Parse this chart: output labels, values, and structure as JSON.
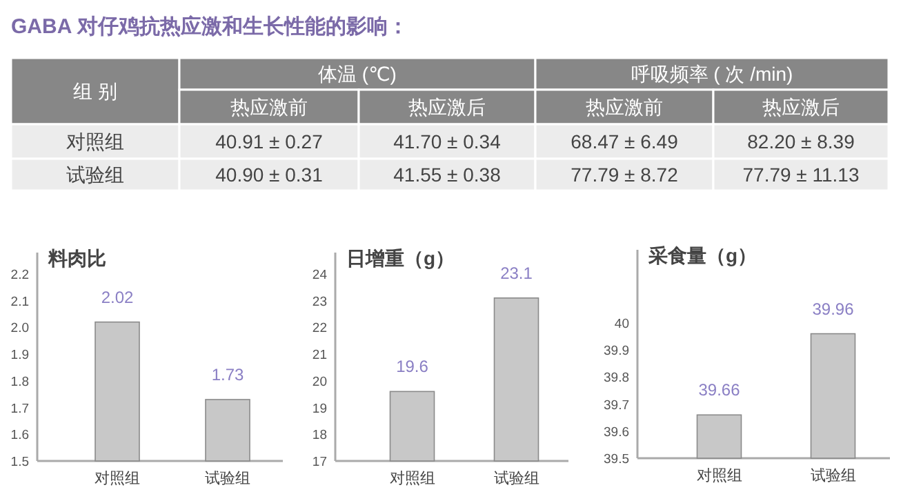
{
  "chart_data": [
    {
      "type": "other",
      "title": "GABA 对仔鸡抗热应激和生长性能的影响：",
      "annotations": [
        "组 别",
        "体温 (℃)",
        "呼吸频率 ( 次 /min)",
        "热应激前",
        "热应激后",
        "热应激前",
        "热应激后",
        "对照组",
        "40.91 ± 0.27",
        "41.70 ± 0.34",
        "68.47 ± 6.49",
        "82.20 ± 8.39",
        "试验组",
        "40.90 ± 0.31",
        "41.55 ± 0.38",
        "77.79 ± 8.72",
        "77.79 ± 11.13"
      ]
    },
    {
      "type": "bar",
      "title": "料肉比",
      "categories": [
        "对照组",
        "试验组"
      ],
      "values": [
        2.02,
        1.73
      ],
      "color": "#c8c8c8",
      "ylim": [
        1.5,
        2.28
      ],
      "yticks": [
        1.5,
        1.6,
        1.7,
        1.8,
        1.9,
        {
          "value": 2.0,
          "label": "2.0"
        },
        2.1,
        2.2
      ],
      "data_labels": true
    },
    {
      "type": "bar",
      "title": "日增重（g）",
      "categories": [
        "对照组",
        "试验组"
      ],
      "values": [
        19.6,
        23.1
      ],
      "color": "#c8c8c8",
      "ylim": [
        17,
        24.8
      ],
      "yticks": [
        17,
        18,
        19,
        20,
        21,
        22,
        23,
        24
      ],
      "data_labels": true
    },
    {
      "type": "bar",
      "title": "采食量（g）",
      "categories": [
        "对照组",
        "试验组"
      ],
      "values": [
        39.66,
        39.96
      ],
      "color": "#c8c8c8",
      "ylim": [
        39.5,
        40.27
      ],
      "yticks": [
        39.5,
        39.6,
        39.7,
        39.8,
        39.9,
        {
          "value": 40.0,
          "label": "40"
        }
      ],
      "data_labels": true
    }
  ]
}
